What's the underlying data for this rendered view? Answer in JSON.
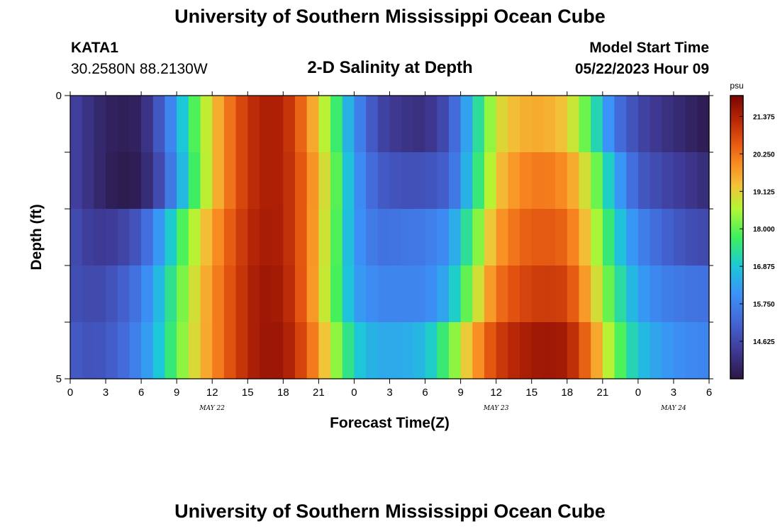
{
  "page": {
    "title": "University of Southern Mississippi Ocean Cube",
    "title_repeat": "University of Southern Mississippi Ocean Cube",
    "station": "KATA1",
    "coords": "30.2580N  88.2130W",
    "subtitle": "2-D Salinity at Depth",
    "model_start_label": "Model Start Time",
    "model_start_value": "05/22/2023 Hour 09"
  },
  "chart_data": {
    "type": "heatmap",
    "title": "2-D Salinity at Depth",
    "xlabel": "Forecast Time(Z)",
    "ylabel": "Depth (ft)",
    "x_tick_labels": [
      "0",
      "3",
      "6",
      "9",
      "12",
      "15",
      "18",
      "21",
      "0",
      "3",
      "6",
      "9",
      "12",
      "15",
      "18",
      "21",
      "0",
      "3",
      "6"
    ],
    "date_labels": [
      {
        "text": "MAY 22",
        "tick_index": 4
      },
      {
        "text": "MAY 23",
        "tick_index": 12
      },
      {
        "text": "MAY 24",
        "tick_index": 17
      }
    ],
    "y_tick_labels": [
      {
        "value": 0,
        "text": "0"
      },
      {
        "value": 1,
        "text": ""
      },
      {
        "value": 2,
        "text": ""
      },
      {
        "value": 3,
        "text": ""
      },
      {
        "value": 4,
        "text": ""
      },
      {
        "value": 5,
        "text": "5"
      }
    ],
    "xlim": [
      0,
      54
    ],
    "ylim": [
      0,
      5
    ],
    "depth_rows": [
      0,
      1,
      2,
      3,
      4
    ],
    "colorbar": {
      "unit": "psu",
      "vmin": 13.5,
      "vmax": 22.0,
      "tick_values": [
        21.375,
        20.25,
        19.125,
        18.0,
        16.875,
        15.75,
        14.625
      ],
      "tick_labels": [
        "21.375",
        "20.250",
        "19.125",
        "18.000",
        "16.875",
        "15.750",
        "14.625"
      ]
    },
    "colormap_stops": [
      {
        "t": 0.0,
        "color": "#2a1744"
      },
      {
        "t": 0.1,
        "color": "#3f3a96"
      },
      {
        "t": 0.2,
        "color": "#4466d6"
      },
      {
        "t": 0.3,
        "color": "#3b92f8"
      },
      {
        "t": 0.4,
        "color": "#1bc9d6"
      },
      {
        "t": 0.5,
        "color": "#3ff05e"
      },
      {
        "t": 0.6,
        "color": "#b2f733"
      },
      {
        "t": 0.68,
        "color": "#f3c338"
      },
      {
        "t": 0.76,
        "color": "#f98b22"
      },
      {
        "t": 0.84,
        "color": "#e2520f"
      },
      {
        "t": 0.92,
        "color": "#b42406"
      },
      {
        "t": 1.0,
        "color": "#7a0403"
      }
    ],
    "salinity_keyframes": {
      "forecast_hours": [
        0,
        2,
        4,
        6,
        8,
        10,
        12,
        14,
        16,
        18,
        20,
        22,
        24,
        26,
        28,
        30,
        32,
        34,
        36,
        38,
        40,
        42,
        44,
        46,
        48,
        50,
        52,
        54
      ],
      "rows": [
        [
          14.6,
          14.0,
          13.7,
          13.8,
          15.3,
          17.4,
          19.2,
          20.6,
          21.4,
          21.4,
          20.1,
          18.2,
          16.0,
          14.6,
          14.2,
          14.1,
          14.8,
          16.8,
          18.9,
          19.5,
          19.6,
          19.2,
          17.7,
          15.5,
          14.6,
          14.2,
          13.9,
          13.6
        ],
        [
          14.6,
          14.0,
          13.6,
          13.7,
          15.0,
          17.2,
          19.2,
          20.6,
          21.4,
          21.4,
          20.3,
          18.5,
          16.2,
          15.0,
          14.8,
          14.8,
          15.1,
          17.0,
          19.2,
          20.0,
          20.2,
          19.9,
          18.6,
          16.5,
          15.0,
          14.6,
          14.3,
          14.0
        ],
        [
          14.8,
          14.3,
          14.4,
          15.0,
          16.5,
          18.3,
          19.7,
          20.8,
          21.5,
          21.4,
          20.3,
          18.4,
          16.2,
          15.4,
          15.5,
          15.6,
          16.0,
          17.8,
          19.7,
          20.4,
          20.6,
          20.4,
          19.0,
          17.1,
          15.8,
          15.2,
          14.8,
          14.6
        ],
        [
          14.8,
          14.6,
          14.9,
          15.6,
          17.0,
          18.6,
          19.9,
          20.9,
          21.6,
          21.5,
          20.3,
          18.3,
          16.3,
          15.8,
          15.8,
          15.8,
          16.5,
          18.5,
          20.2,
          20.8,
          21.0,
          20.9,
          19.4,
          17.6,
          16.3,
          15.7,
          15.5,
          15.4
        ],
        [
          15.0,
          14.8,
          15.1,
          15.9,
          17.2,
          18.7,
          19.9,
          20.9,
          21.6,
          21.6,
          20.6,
          18.8,
          17.0,
          16.4,
          16.4,
          16.7,
          17.9,
          19.6,
          20.9,
          21.4,
          21.6,
          21.5,
          20.1,
          18.2,
          16.8,
          16.2,
          15.9,
          15.8
        ]
      ]
    }
  }
}
